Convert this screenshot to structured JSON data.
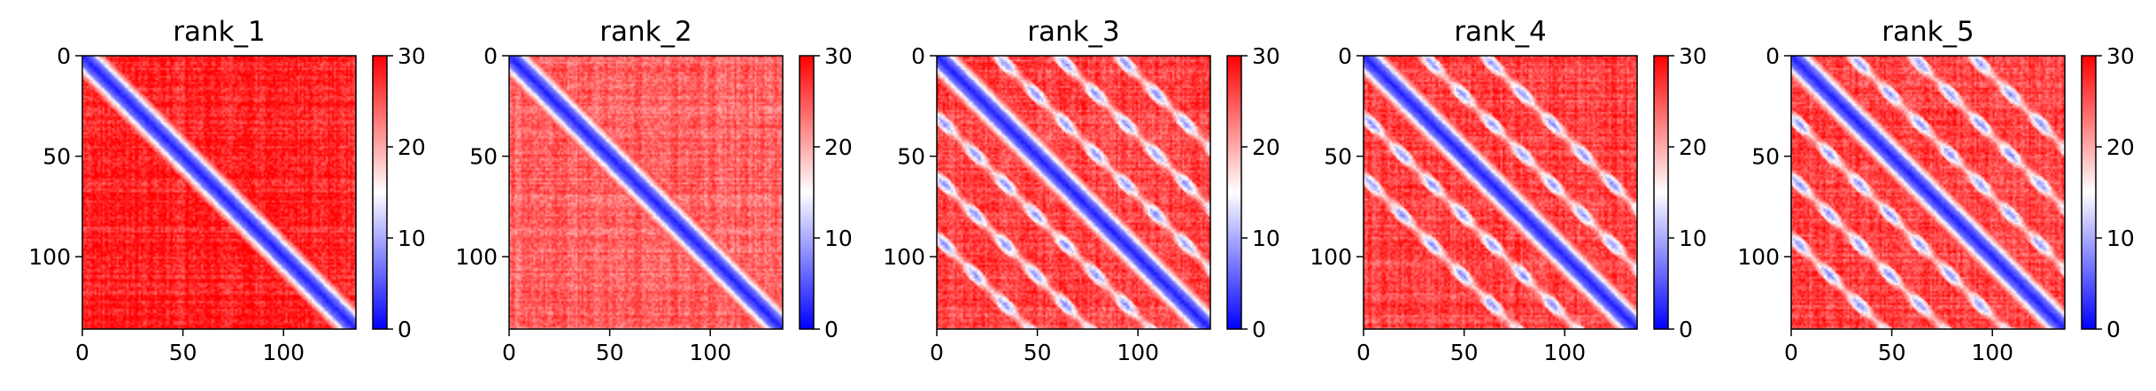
{
  "chart_data": [
    {
      "type": "heatmap",
      "title": "rank_1",
      "grid_size": 136,
      "x_ticks": [
        0,
        50,
        100
      ],
      "y_ticks": [
        0,
        50,
        100
      ],
      "xlim": [
        0,
        136
      ],
      "ylim": [
        136,
        0
      ],
      "colorbar": {
        "min": 0,
        "max": 30,
        "ticks": [
          0,
          10,
          20,
          30
        ],
        "colormap": "bwr"
      },
      "pattern": {
        "diagonal_width": 5,
        "offdiag_level": 28,
        "side_bands": []
      }
    },
    {
      "type": "heatmap",
      "title": "rank_2",
      "grid_size": 136,
      "x_ticks": [
        0,
        50,
        100
      ],
      "y_ticks": [
        0,
        50,
        100
      ],
      "xlim": [
        0,
        136
      ],
      "ylim": [
        136,
        0
      ],
      "colorbar": {
        "min": 0,
        "max": 30,
        "ticks": [
          0,
          10,
          20,
          30
        ],
        "colormap": "bwr"
      },
      "pattern": {
        "diagonal_width": 5,
        "offdiag_level": 24,
        "side_bands": []
      }
    },
    {
      "type": "heatmap",
      "title": "rank_3",
      "grid_size": 136,
      "x_ticks": [
        0,
        50,
        100
      ],
      "y_ticks": [
        0,
        50,
        100
      ],
      "xlim": [
        0,
        136
      ],
      "ylim": [
        136,
        0
      ],
      "colorbar": {
        "min": 0,
        "max": 30,
        "ticks": [
          0,
          10,
          20,
          30
        ],
        "colormap": "bwr"
      },
      "pattern": {
        "diagonal_width": 5,
        "offdiag_level": 26,
        "side_bands": [
          30,
          60,
          90
        ]
      }
    },
    {
      "type": "heatmap",
      "title": "rank_4",
      "grid_size": 136,
      "x_ticks": [
        0,
        50,
        100
      ],
      "y_ticks": [
        0,
        50,
        100
      ],
      "xlim": [
        0,
        136
      ],
      "ylim": [
        136,
        0
      ],
      "colorbar": {
        "min": 0,
        "max": 30,
        "ticks": [
          0,
          10,
          20,
          30
        ],
        "colormap": "bwr"
      },
      "pattern": {
        "diagonal_width": 5,
        "offdiag_level": 26,
        "side_bands": [
          30,
          60
        ]
      }
    },
    {
      "type": "heatmap",
      "title": "rank_5",
      "grid_size": 136,
      "x_ticks": [
        0,
        50,
        100
      ],
      "y_ticks": [
        0,
        50,
        100
      ],
      "xlim": [
        0,
        136
      ],
      "ylim": [
        136,
        0
      ],
      "colorbar": {
        "min": 0,
        "max": 30,
        "ticks": [
          0,
          10,
          20,
          30
        ],
        "colormap": "bwr"
      },
      "pattern": {
        "diagonal_width": 5,
        "offdiag_level": 26,
        "side_bands": [
          30,
          60,
          90
        ]
      }
    }
  ],
  "colors": {
    "low": "#0000ff",
    "mid": "#ffffff",
    "high": "#ff0000"
  }
}
